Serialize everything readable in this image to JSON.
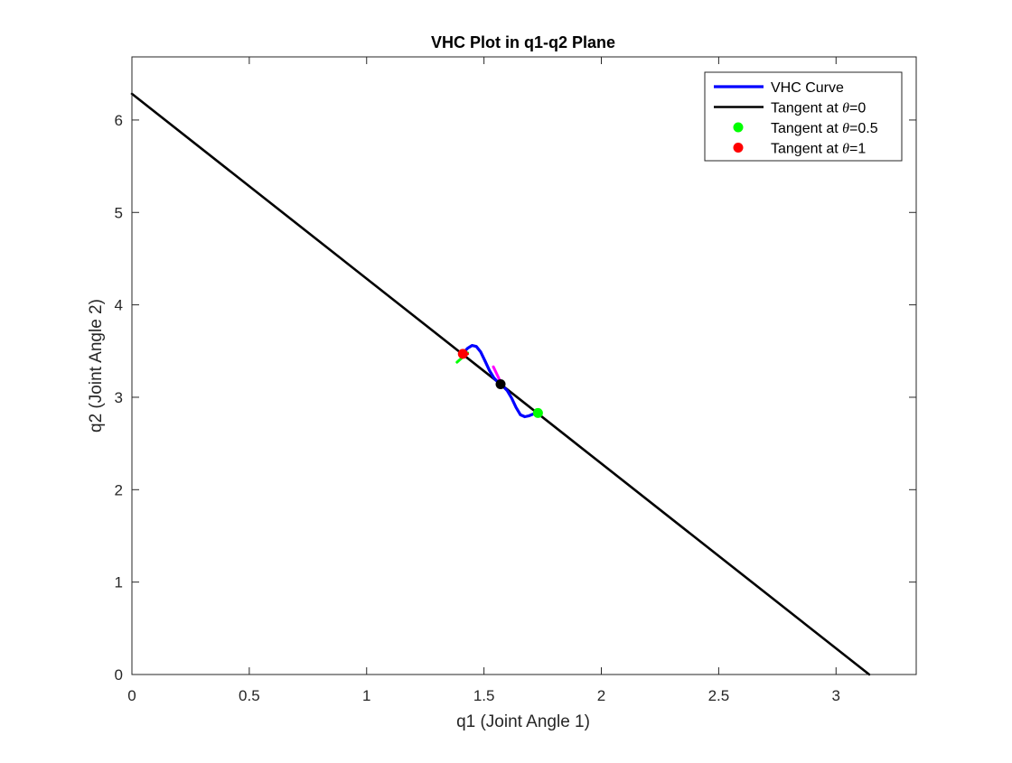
{
  "chart_data": {
    "type": "line",
    "title": "VHC Plot in q1-q2 Plane",
    "xlabel": "q1 (Joint Angle 1)",
    "ylabel": "q2 (Joint Angle 2)",
    "xlim": [
      0,
      3.3416
    ],
    "ylim": [
      0,
      6.6832
    ],
    "xticks": [
      0,
      0.5,
      1,
      1.5,
      2,
      2.5,
      3
    ],
    "xtick_labels": [
      "0",
      "0.5",
      "1",
      "1.5",
      "2",
      "2.5",
      "3"
    ],
    "yticks": [
      0,
      1,
      2,
      3,
      4,
      5,
      6
    ],
    "ytick_labels": [
      "0",
      "1",
      "2",
      "3",
      "4",
      "5",
      "6"
    ],
    "grid": false,
    "legend_position": "top-right",
    "legend": [
      {
        "label_prefix": "VHC Curve",
        "symbol": "",
        "label_suffix": "",
        "marker": "line",
        "color": "#0000ff"
      },
      {
        "label_prefix": "Tangent at ",
        "symbol": "θ",
        "label_suffix": "=0",
        "marker": "line",
        "color": "#000000"
      },
      {
        "label_prefix": "Tangent at ",
        "symbol": "θ",
        "label_suffix": "=0.5",
        "marker": "dot",
        "color": "#00ff00"
      },
      {
        "label_prefix": "Tangent at ",
        "symbol": "θ",
        "label_suffix": "=1",
        "marker": "dot",
        "color": "#ff0000"
      }
    ],
    "series": [
      {
        "name": "VHC Curve",
        "color": "#0000ff",
        "x": [
          1.4116,
          1.4302,
          1.4489,
          1.4675,
          1.4862,
          1.5048,
          1.5235,
          1.5421,
          1.5608,
          1.5708,
          1.5808,
          1.5994,
          1.6181,
          1.6367,
          1.6554,
          1.674,
          1.6927,
          1.7113,
          1.73
        ],
        "y": [
          3.48,
          3.53,
          3.56,
          3.55,
          3.49,
          3.39,
          3.29,
          3.21,
          3.16,
          3.1416,
          3.12,
          3.07,
          2.99,
          2.89,
          2.81,
          2.79,
          2.8,
          2.82,
          2.83
        ]
      },
      {
        "name": "Tangent at θ=0",
        "color": "#000000",
        "x": [
          0,
          3.1416
        ],
        "y": [
          6.2832,
          0
        ]
      }
    ],
    "extra_segments": [
      {
        "color": "#ff00ff",
        "x": [
          1.54,
          1.57
        ],
        "y": [
          3.33,
          3.17
        ]
      },
      {
        "color": "#00ff00",
        "x": [
          1.385,
          1.43
        ],
        "y": [
          3.38,
          3.48
        ]
      },
      {
        "color": "#ff0000",
        "x": [
          1.4,
          1.43
        ],
        "y": [
          3.46,
          3.47
        ]
      }
    ],
    "points": [
      {
        "x": 1.5708,
        "y": 3.1416,
        "color": "#000000"
      },
      {
        "x": 1.73,
        "y": 2.83,
        "color": "#00ff00"
      },
      {
        "x": 1.41,
        "y": 3.47,
        "color": "#ff0000"
      }
    ]
  }
}
